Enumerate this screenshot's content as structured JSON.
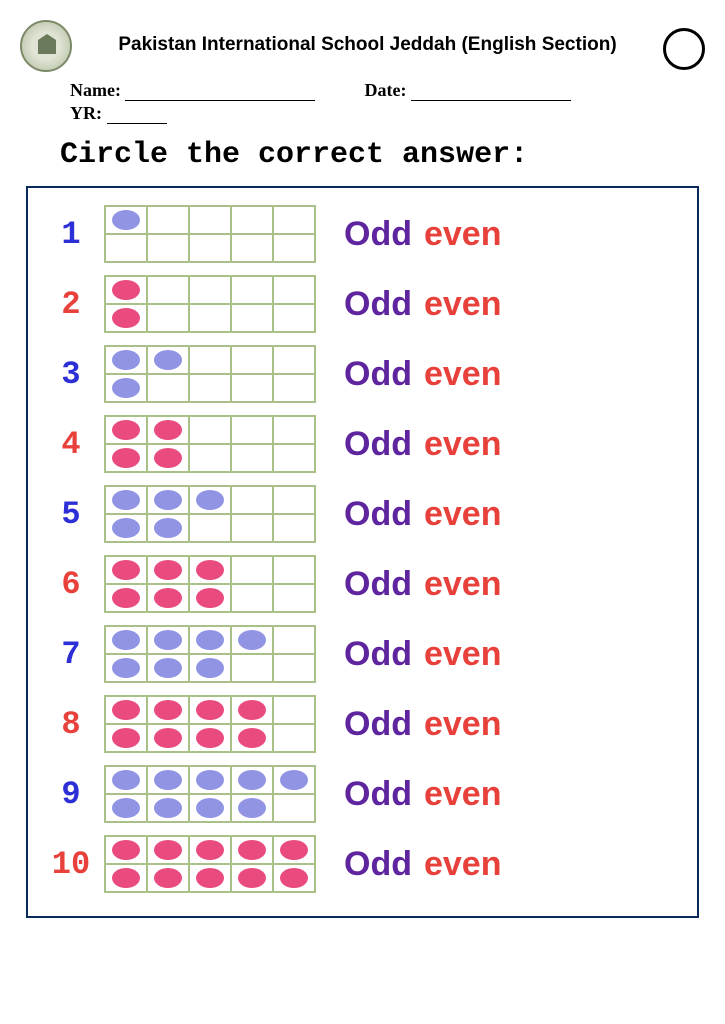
{
  "header": {
    "school_title": "Pakistan International School Jeddah (English Section)",
    "name_label": "Name:",
    "date_label": "Date:",
    "yr_label": "YR:"
  },
  "instruction": "Circle the correct answer:",
  "colors": {
    "odd_numbers": [
      "#2c2fd6",
      "#9193e3",
      "#e8403a",
      "#2c2fd6",
      "#e8403a",
      "#e8403a",
      "#9193e3",
      "#e8403a",
      "#9193e3",
      "#e8403a"
    ],
    "dot_pink": "#e94b7e",
    "dot_purple": "#9193e3",
    "odd_text": "#5f259f",
    "even_text": "#e8403a",
    "frame_border": "#a9c088",
    "box_border": "#0a2a5c"
  },
  "questions": [
    {
      "n": "1",
      "num_color": "#2c2fd6",
      "count": 1,
      "dot_color": "#9193e3"
    },
    {
      "n": "2",
      "num_color": "#e8403a",
      "count": 2,
      "dot_color": "#e94b7e"
    },
    {
      "n": "3",
      "num_color": "#2c2fd6",
      "count": 3,
      "dot_color": "#9193e3"
    },
    {
      "n": "4",
      "num_color": "#e8403a",
      "count": 4,
      "dot_color": "#e94b7e"
    },
    {
      "n": "5",
      "num_color": "#2c2fd6",
      "count": 5,
      "dot_color": "#9193e3"
    },
    {
      "n": "6",
      "num_color": "#e8403a",
      "count": 6,
      "dot_color": "#e94b7e"
    },
    {
      "n": "7",
      "num_color": "#2c2fd6",
      "count": 7,
      "dot_color": "#9193e3"
    },
    {
      "n": "8",
      "num_color": "#e8403a",
      "count": 8,
      "dot_color": "#e94b7e"
    },
    {
      "n": "9",
      "num_color": "#2c2fd6",
      "count": 9,
      "dot_color": "#9193e3"
    },
    {
      "n": "10",
      "num_color": "#e8403a",
      "count": 10,
      "dot_color": "#e94b7e"
    }
  ],
  "answer_labels": {
    "odd": "Odd",
    "even": "even"
  }
}
